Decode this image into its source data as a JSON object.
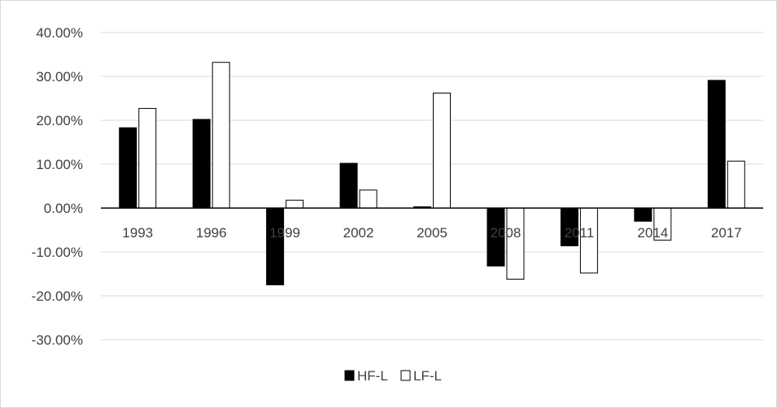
{
  "chart_data": {
    "type": "bar",
    "categories": [
      "1993",
      "1996",
      "1999",
      "2002",
      "2005",
      "2008",
      "2011",
      "2014",
      "2017"
    ],
    "series": [
      {
        "name": "HF-L",
        "values": [
          18.3,
          20.2,
          -17.5,
          10.2,
          0.3,
          -13.2,
          -8.6,
          -3.0,
          29.1
        ],
        "color": "#000000"
      },
      {
        "name": "LF-L",
        "values": [
          22.7,
          33.2,
          1.8,
          4.1,
          26.2,
          -16.2,
          -14.8,
          -7.3,
          10.7
        ],
        "color": "#ffffff"
      }
    ],
    "yticks": [
      "40.00%",
      "30.00%",
      "20.00%",
      "10.00%",
      "0.00%",
      "-10.00%",
      "-20.00%",
      "-30.00%"
    ],
    "ylim": [
      -30,
      40
    ],
    "title": "",
    "xlabel": "",
    "ylabel": "",
    "grid": true,
    "legend": "bottom"
  }
}
